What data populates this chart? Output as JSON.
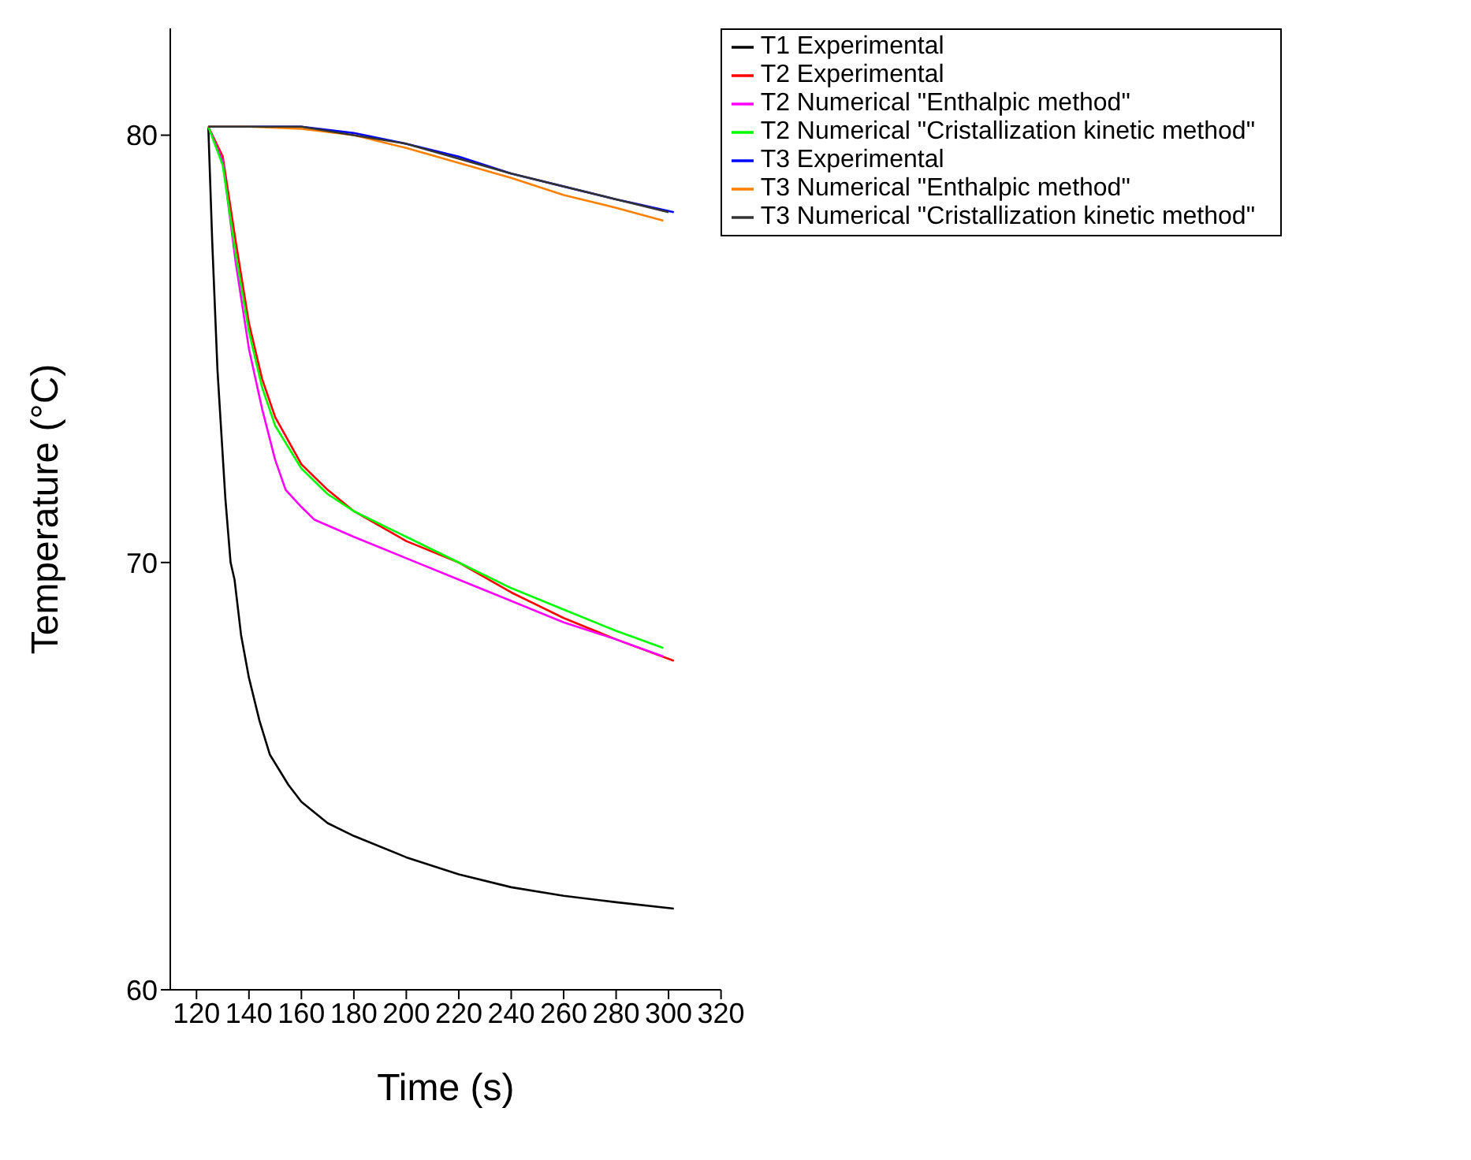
{
  "chart_data": {
    "type": "line",
    "xlabel": "Time (s)",
    "ylabel": "Temperature (°C)",
    "xlim": [
      110,
      320
    ],
    "ylim": [
      60,
      82.5
    ],
    "xticks": [
      120,
      140,
      160,
      180,
      200,
      220,
      240,
      260,
      280,
      300,
      320
    ],
    "yticks": [
      60,
      70,
      80
    ],
    "grid": false,
    "legend": "top right",
    "marker": "none",
    "line_style": "solid",
    "series": [
      {
        "name": "T1 Experimental",
        "color": "#000000",
        "x": [
          124.5,
          126,
          128,
          131,
          133,
          134.5,
          137,
          140,
          144,
          148,
          155,
          160,
          170,
          180,
          200,
          220,
          240,
          260,
          280,
          302
        ],
        "values": [
          80.2,
          77.5,
          74.5,
          71.5,
          70,
          69.6,
          68.3,
          67.3,
          66.3,
          65.5,
          64.8,
          64.4,
          63.9,
          63.6,
          63.1,
          62.7,
          62.4,
          62.2,
          62.05,
          61.9
        ]
      },
      {
        "name": "T2 Experimental",
        "color": "#ff0000",
        "x": [
          124.5,
          130,
          135,
          140,
          145,
          150,
          160,
          170,
          180,
          200,
          220,
          240,
          260,
          280,
          302
        ],
        "values": [
          80.2,
          79.5,
          77.5,
          75.6,
          74.3,
          73.4,
          72.3,
          71.7,
          71.2,
          70.5,
          70,
          69.3,
          68.7,
          68.2,
          67.7
        ]
      },
      {
        "name": "T2 Numerical \"Enthalpic method\"",
        "color": "#ff00ff",
        "x": [
          124.5,
          130,
          135,
          140,
          145,
          150,
          154,
          160,
          165,
          180,
          200,
          220,
          240,
          260,
          280,
          298
        ],
        "values": [
          80.2,
          79.4,
          77,
          75,
          73.6,
          72.4,
          71.7,
          71.3,
          71,
          70.6,
          70.1,
          69.6,
          69.1,
          68.6,
          68.2,
          67.8
        ]
      },
      {
        "name": "T2 Numerical \"Cristallization kinetic method\"",
        "color": "#00ff00",
        "x": [
          124.5,
          130,
          135,
          140,
          145,
          150,
          160,
          170,
          180,
          200,
          220,
          240,
          260,
          280,
          298
        ],
        "values": [
          80.2,
          79.3,
          77.2,
          75.4,
          74.1,
          73.2,
          72.2,
          71.6,
          71.2,
          70.6,
          70,
          69.4,
          68.9,
          68.4,
          68
        ]
      },
      {
        "name": "T3 Experimental",
        "color": "#0000ff",
        "x": [
          124.5,
          140,
          160,
          180,
          200,
          220,
          240,
          260,
          280,
          302
        ],
        "values": [
          80.2,
          80.2,
          80.2,
          80.05,
          79.8,
          79.5,
          79.1,
          78.8,
          78.5,
          78.2
        ]
      },
      {
        "name": "T3 Numerical \"Enthalpic method\"",
        "color": "#ff8000",
        "x": [
          124.5,
          140,
          160,
          180,
          200,
          220,
          240,
          260,
          280,
          298
        ],
        "values": [
          80.2,
          80.2,
          80.15,
          80,
          79.7,
          79.35,
          79,
          78.6,
          78.3,
          78
        ]
      },
      {
        "name": "T3 Numerical \"Cristallization kinetic method\"",
        "color": "#333333",
        "x": [
          124.5,
          160,
          200,
          240,
          280,
          300
        ],
        "values": [
          80.2,
          80.2,
          79.8,
          79.1,
          78.5,
          78.2
        ]
      }
    ]
  }
}
